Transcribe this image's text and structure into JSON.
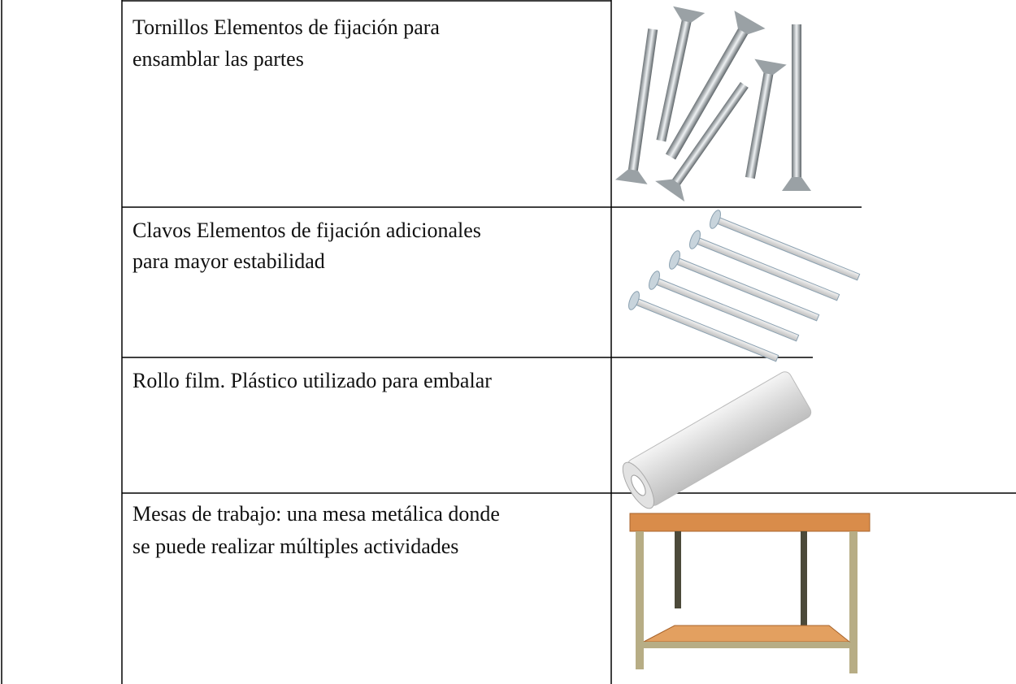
{
  "table": {
    "rows": [
      {
        "lines": [
          "Tornillos Elementos de fijación para",
          "ensamblar las partes"
        ]
      },
      {
        "lines": [
          "Clavos  Elementos de fijación adicionales",
          "para mayor estabilidad"
        ]
      },
      {
        "lines": [
          "Rollo film. Plástico utilizado para embalar"
        ]
      },
      {
        "lines": [
          "Mesas de trabajo: una mesa metálica donde",
          "se puede realizar múltiples actividades"
        ]
      }
    ]
  }
}
